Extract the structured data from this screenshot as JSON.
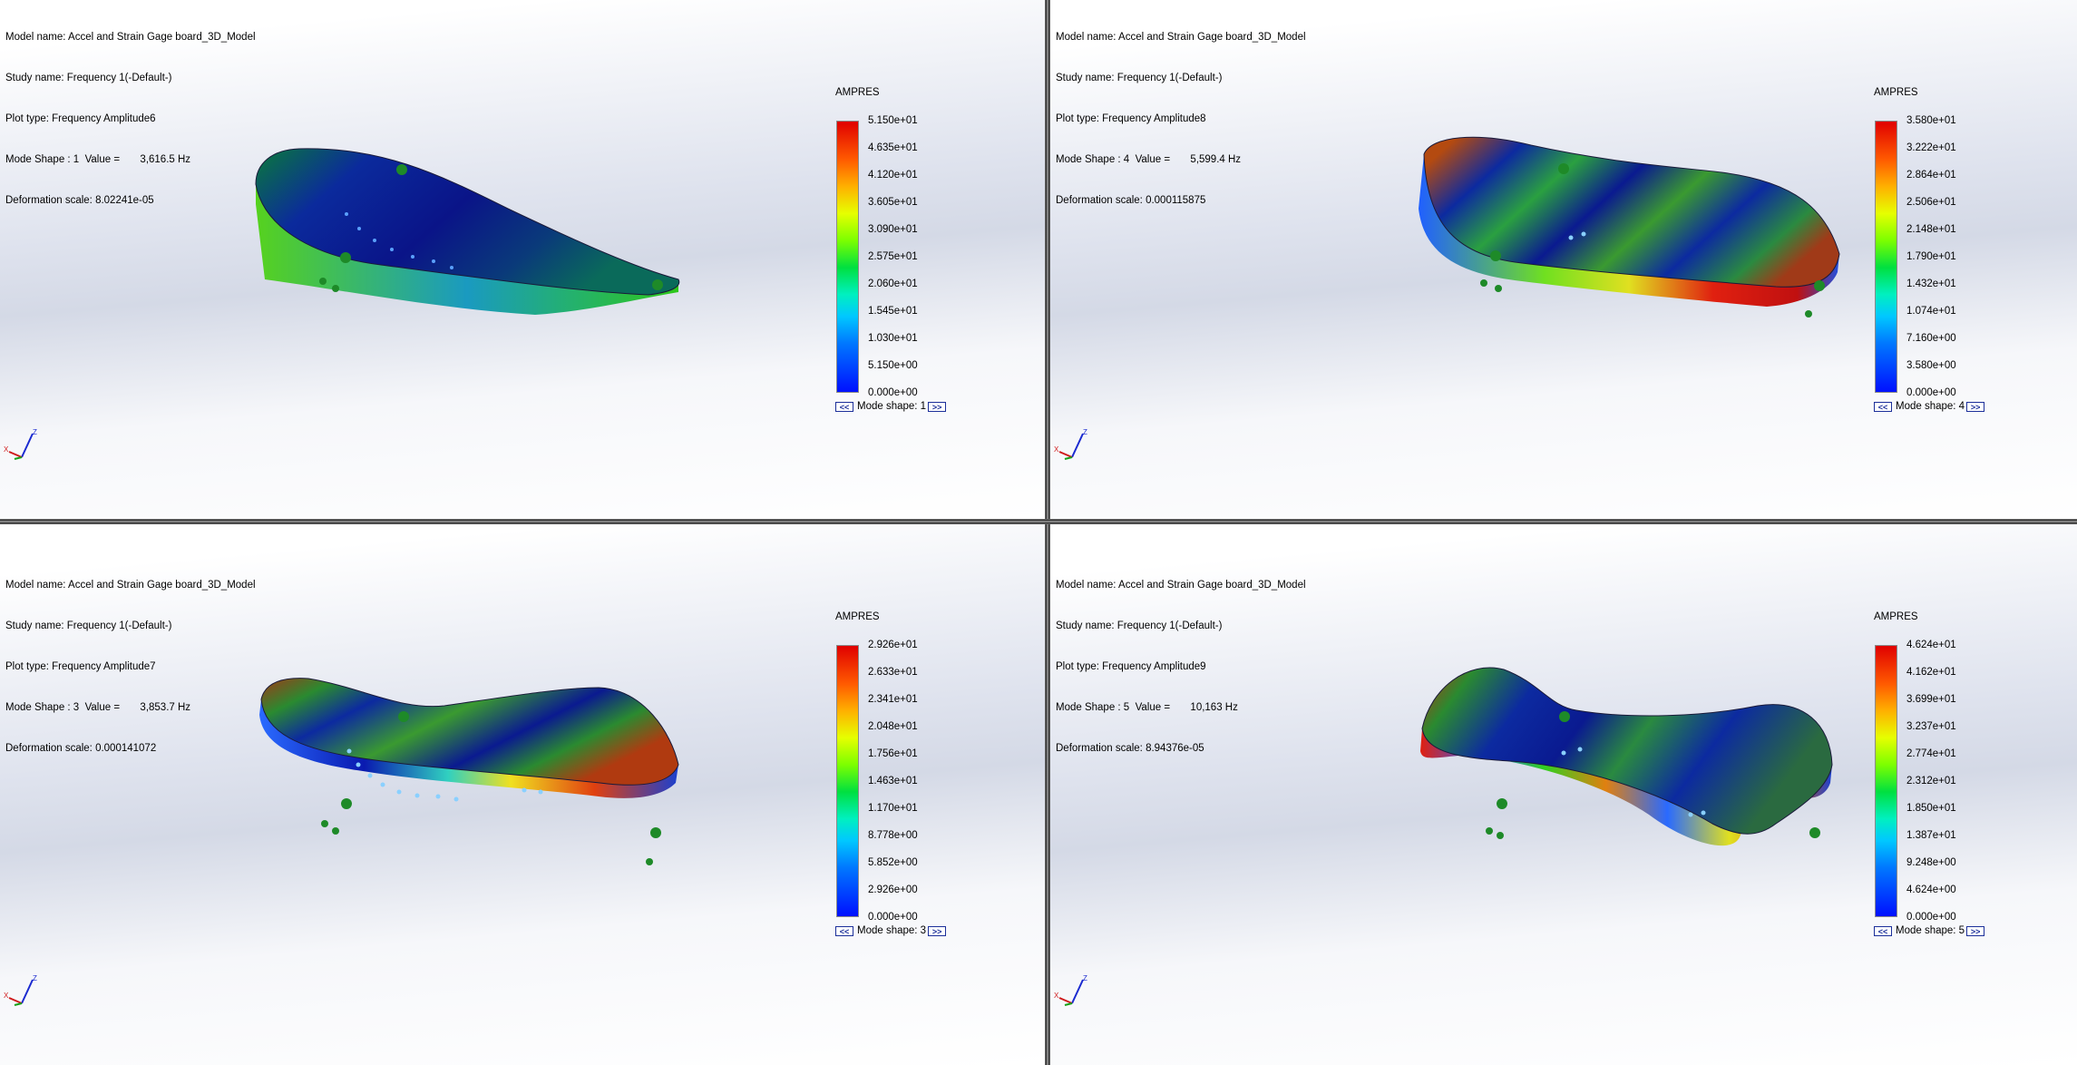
{
  "viewports": [
    {
      "info": {
        "model_name": "Model name: Accel and Strain Gage board_3D_Model",
        "study_name": "Study name: Frequency 1(-Default-)",
        "plot_type": "Plot type: Frequency Amplitude6",
        "mode_shape": "Mode Shape : 1  Value =       3,616.5 Hz",
        "deformation_scale": "Deformation scale: 8.02241e-05"
      },
      "legend": {
        "title": "AMPRES",
        "ticks": [
          "5.150e+01",
          "4.635e+01",
          "4.120e+01",
          "3.605e+01",
          "3.090e+01",
          "2.575e+01",
          "2.060e+01",
          "1.545e+01",
          "1.030e+01",
          "5.150e+00",
          "0.000e+00"
        ],
        "mode_label": "Mode shape: 1",
        "prev": "<<",
        "next": ">>"
      },
      "triad": {
        "x": "X",
        "z": "Z"
      }
    },
    {
      "info": {
        "model_name": "Model name: Accel and Strain Gage board_3D_Model",
        "study_name": "Study name: Frequency 1(-Default-)",
        "plot_type": "Plot type: Frequency Amplitude8",
        "mode_shape": "Mode Shape : 4  Value =       5,599.4 Hz",
        "deformation_scale": "Deformation scale: 0.000115875"
      },
      "legend": {
        "title": "AMPRES",
        "ticks": [
          "3.580e+01",
          "3.222e+01",
          "2.864e+01",
          "2.506e+01",
          "2.148e+01",
          "1.790e+01",
          "1.432e+01",
          "1.074e+01",
          "7.160e+00",
          "3.580e+00",
          "0.000e+00"
        ],
        "mode_label": "Mode shape: 4",
        "prev": "<<",
        "next": ">>"
      },
      "triad": {
        "x": "X",
        "z": "Z"
      }
    },
    {
      "info": {
        "model_name": "Model name: Accel and Strain Gage board_3D_Model",
        "study_name": "Study name: Frequency 1(-Default-)",
        "plot_type": "Plot type: Frequency Amplitude7",
        "mode_shape": "Mode Shape : 3  Value =       3,853.7 Hz",
        "deformation_scale": "Deformation scale: 0.000141072"
      },
      "legend": {
        "title": "AMPRES",
        "ticks": [
          "2.926e+01",
          "2.633e+01",
          "2.341e+01",
          "2.048e+01",
          "1.756e+01",
          "1.463e+01",
          "1.170e+01",
          "8.778e+00",
          "5.852e+00",
          "2.926e+00",
          "0.000e+00"
        ],
        "mode_label": "Mode shape: 3",
        "prev": "<<",
        "next": ">>"
      },
      "triad": {
        "x": "X",
        "z": "Z"
      }
    },
    {
      "info": {
        "model_name": "Model name: Accel and Strain Gage board_3D_Model",
        "study_name": "Study name: Frequency 1(-Default-)",
        "plot_type": "Plot type: Frequency Amplitude9",
        "mode_shape": "Mode Shape : 5  Value =       10,163 Hz",
        "deformation_scale": "Deformation scale: 8.94376e-05"
      },
      "legend": {
        "title": "AMPRES",
        "ticks": [
          "4.624e+01",
          "4.162e+01",
          "3.699e+01",
          "3.237e+01",
          "2.774e+01",
          "2.312e+01",
          "1.850e+01",
          "1.387e+01",
          "9.248e+00",
          "4.624e+00",
          "0.000e+00"
        ],
        "mode_label": "Mode shape: 5",
        "prev": "<<",
        "next": ">>"
      },
      "triad": {
        "x": "X",
        "z": "Z"
      }
    }
  ],
  "colors": {
    "board_high": "#c81a0a",
    "board_mid": "#4fc31d",
    "board_low": "#0a1aa8",
    "fixture_green": "#1ea51e",
    "button_blue": "#1c2f9a"
  }
}
